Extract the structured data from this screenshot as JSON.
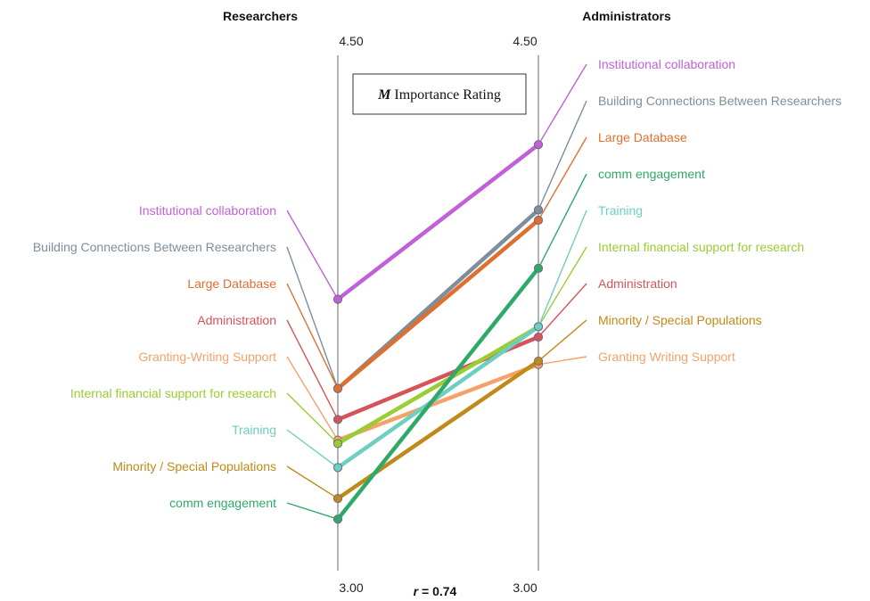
{
  "chart_data": {
    "type": "line",
    "title": "M Importance Rating",
    "title_prefix": "M",
    "title_text": "Importance Rating",
    "axes": [
      "Researchers",
      "Administrators"
    ],
    "axis_min_label": "3.00",
    "axis_max_label": "4.50",
    "ylim": [
      3.0,
      4.5
    ],
    "correlation_prefix": "r",
    "correlation_value": "= 0.74",
    "series": [
      {
        "researchers_label": "Institutional collaboration",
        "administrators_label": "Institutional collaboration",
        "researchers": 3.79,
        "administrators": 4.24,
        "color": "#c061d8"
      },
      {
        "researchers_label": "Building Connections Between Researchers",
        "administrators_label": "Building Connections Between Researchers",
        "researchers": 3.53,
        "administrators": 4.05,
        "color": "#7d8e9d"
      },
      {
        "researchers_label": "Large Database",
        "administrators_label": "Large Database",
        "researchers": 3.53,
        "administrators": 4.02,
        "color": "#de6f2f"
      },
      {
        "researchers_label": "Administration",
        "administrators_label": "Administration",
        "researchers": 3.44,
        "administrators": 3.68,
        "color": "#d4545a"
      },
      {
        "researchers_label": "Granting-Writing Support",
        "administrators_label": "Granting Writing Support",
        "researchers": 3.38,
        "administrators": 3.6,
        "color": "#f3a26a"
      },
      {
        "researchers_label": "Internal financial support for research",
        "administrators_label": "Internal financial support for research",
        "researchers": 3.37,
        "administrators": 3.71,
        "color": "#9acd32"
      },
      {
        "researchers_label": "Training",
        "administrators_label": "Training",
        "researchers": 3.3,
        "administrators": 3.71,
        "color": "#6dcfbf"
      },
      {
        "researchers_label": "Minority / Special Populations",
        "administrators_label": "Minority / Special Populations",
        "researchers": 3.21,
        "administrators": 3.61,
        "color": "#c08a1a"
      },
      {
        "researchers_label": "comm engagement",
        "administrators_label": "comm engagement",
        "researchers": 3.15,
        "administrators": 3.88,
        "color": "#2fa86a"
      }
    ]
  }
}
